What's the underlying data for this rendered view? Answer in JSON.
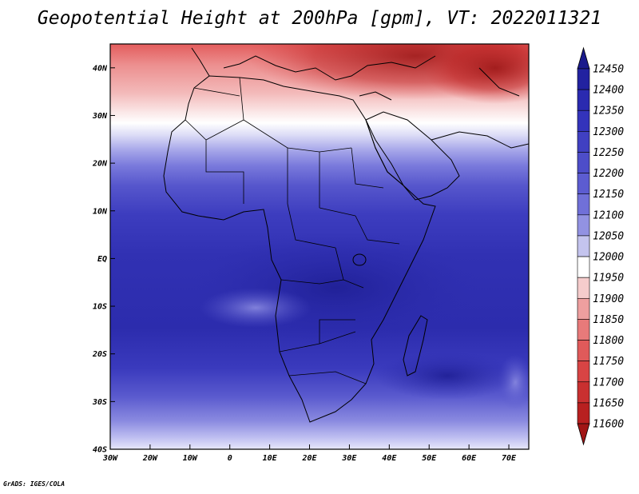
{
  "title": "Geopotential Height at 200hPa [gpm], VT: 2022011321",
  "credit": "GrADS: IGES/COLA",
  "chart_data": {
    "type": "heatmap",
    "variable": "Geopotential Height at 200hPa",
    "units": "gpm",
    "valid_time": "2022011321",
    "x_range": [
      -30,
      75
    ],
    "y_range": [
      -40,
      45
    ],
    "x_ticks": [
      {
        "value": -30,
        "label": "30W"
      },
      {
        "value": -20,
        "label": "20W"
      },
      {
        "value": -10,
        "label": "10W"
      },
      {
        "value": 0,
        "label": "0"
      },
      {
        "value": 10,
        "label": "10E"
      },
      {
        "value": 20,
        "label": "20E"
      },
      {
        "value": 30,
        "label": "30E"
      },
      {
        "value": 40,
        "label": "40E"
      },
      {
        "value": 50,
        "label": "50E"
      },
      {
        "value": 60,
        "label": "60E"
      },
      {
        "value": 70,
        "label": "70E"
      }
    ],
    "y_ticks": [
      {
        "value": 40,
        "label": "40N"
      },
      {
        "value": 30,
        "label": "30N"
      },
      {
        "value": 20,
        "label": "20N"
      },
      {
        "value": 10,
        "label": "10N"
      },
      {
        "value": 0,
        "label": "EQ"
      },
      {
        "value": -10,
        "label": "10S"
      },
      {
        "value": -20,
        "label": "20S"
      },
      {
        "value": -30,
        "label": "30S"
      },
      {
        "value": -40,
        "label": "40S"
      }
    ],
    "colorbar": {
      "levels": [
        "12450",
        "12400",
        "12350",
        "12300",
        "12250",
        "12200",
        "12150",
        "12100",
        "12050",
        "12000",
        "11950",
        "11900",
        "11850",
        "11800",
        "11750",
        "11700",
        "11650",
        "11600"
      ],
      "colors": [
        "#1a1a8c",
        "#2222a0",
        "#2a2ab0",
        "#3333bb",
        "#4040c2",
        "#4d4dc9",
        "#5c5cd1",
        "#7070d8",
        "#9292e2",
        "#c4c4ee",
        "#ffffff",
        "#f5cccc",
        "#ee9f9f",
        "#e87a7a",
        "#e05a5a",
        "#d84444",
        "#c93030",
        "#b82020",
        "#a11515"
      ]
    }
  }
}
